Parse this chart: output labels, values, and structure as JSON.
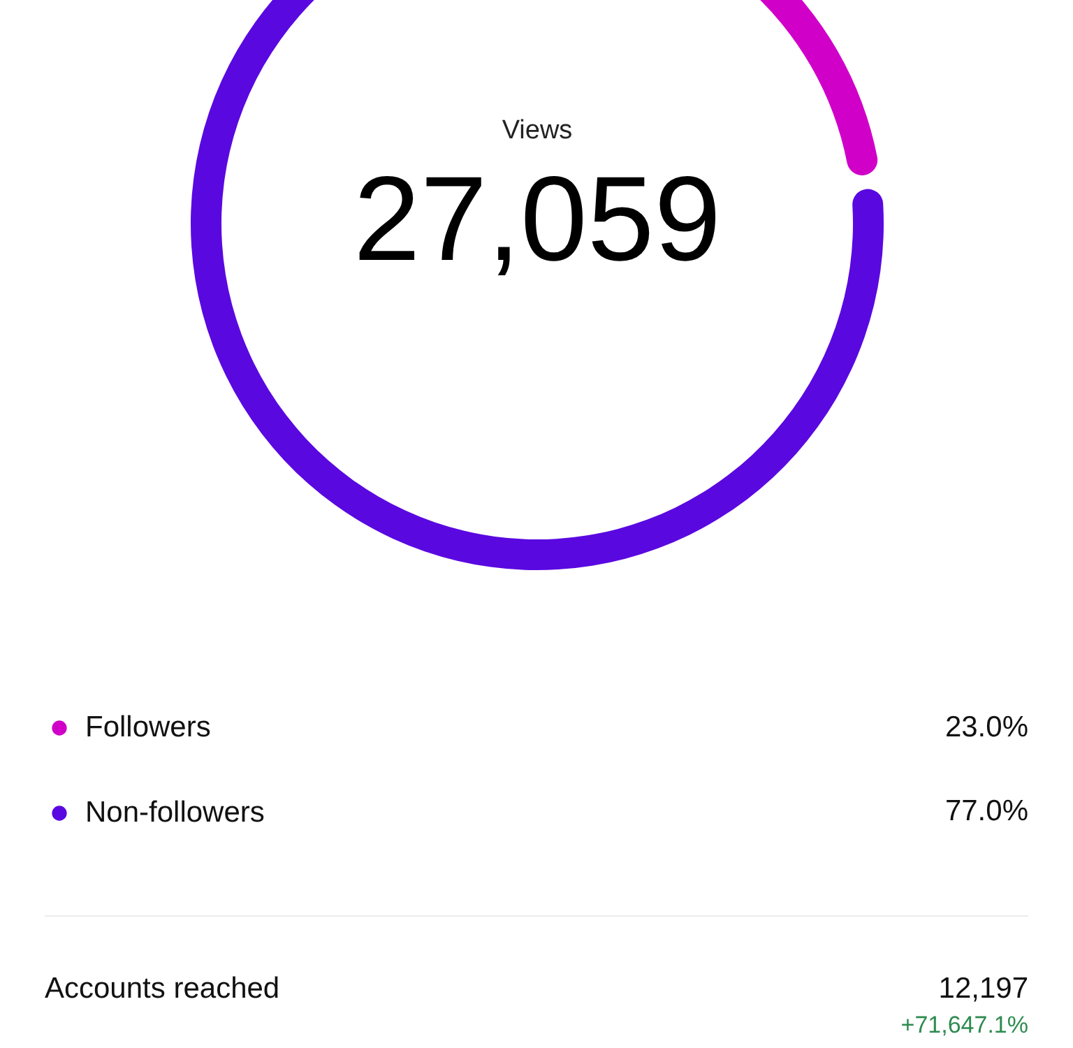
{
  "chart_data": {
    "type": "donut",
    "title": "Views",
    "subtitle": "27,059",
    "categories": [
      "Followers",
      "Non-followers"
    ],
    "values": [
      23.0,
      77.0
    ],
    "colors": [
      "#d000c8",
      "#5a08e0"
    ],
    "value_labels": [
      "23.0%",
      "77.0%"
    ],
    "legend": "bottom",
    "annotations": [
      "Accounts reached",
      "12,197",
      "+71,647.1%"
    ]
  }
}
